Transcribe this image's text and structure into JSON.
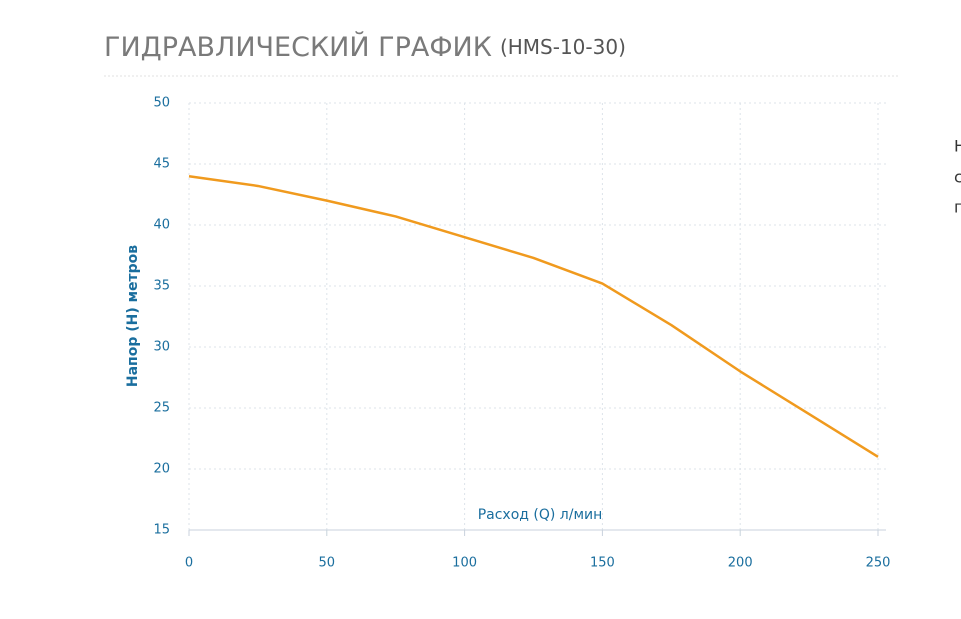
{
  "chart_data": {
    "type": "line",
    "title": "ГИДРАВЛИЧЕСКИЙ ГРАФИК",
    "subtitle": "(HMS-10-30)",
    "x_label": "Расход (Q) л/мин",
    "y_label": "Напор (H) метров",
    "x": [
      0,
      25,
      50,
      75,
      100,
      125,
      150,
      175,
      200,
      225,
      250
    ],
    "series": [
      {
        "color": "#f09a1e",
        "values": [
          44,
          43.2,
          42,
          40.7,
          39,
          37.3,
          35.2,
          31.8,
          28,
          24.5,
          21
        ]
      }
    ],
    "xlim": [
      0,
      250
    ],
    "xticks": [
      0,
      50,
      100,
      150,
      200,
      250
    ],
    "ylim": [
      15,
      50
    ],
    "yticks": [
      15,
      20,
      25,
      30,
      35,
      40,
      45,
      50
    ],
    "grid": true
  },
  "side_text": [
    "Н",
    "с",
    "п"
  ]
}
